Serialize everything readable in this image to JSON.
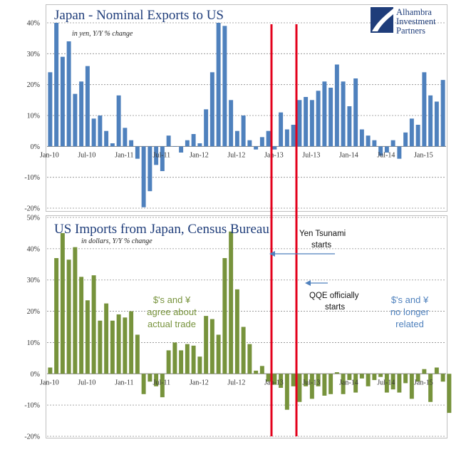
{
  "brand": {
    "lines": [
      "Alhambra",
      "Investment",
      "Partners"
    ],
    "color": "#1f3d7a"
  },
  "colors": {
    "top_bars": "#4f81bd",
    "bottom_bars": "#77933c",
    "markers": "#e3001b",
    "arrows": "#4f81bd"
  },
  "chart_data": [
    {
      "type": "bar",
      "title": "Japan - Nominal Exports to US",
      "subtitle": "in yen, Y/Y % change",
      "ylim": [
        -20,
        40
      ],
      "yticks": [
        "-20%",
        "-10%",
        "0%",
        "10%",
        "20%",
        "30%",
        "40%"
      ],
      "ytick_values": [
        -20,
        -10,
        0,
        10,
        20,
        30,
        40
      ],
      "xtick_labels": [
        "Jan-10",
        "Jul-10",
        "Jan-11",
        "Jul-11",
        "Jan-12",
        "Jul-12",
        "Jan-13",
        "Jul-13",
        "Jan-14",
        "Jul-14",
        "Jan-15"
      ],
      "xtick_index": [
        0,
        6,
        12,
        18,
        24,
        30,
        36,
        42,
        48,
        54,
        60
      ],
      "grid": true,
      "start": "Jan-10",
      "values": [
        24,
        40,
        29,
        34,
        17,
        21,
        26,
        9,
        10,
        5,
        1,
        16.5,
        6,
        2,
        -4,
        -19.7,
        -14.5,
        -6,
        -8,
        3.5,
        0,
        -2,
        2,
        4,
        1,
        12,
        24,
        40,
        39,
        15,
        5,
        10,
        2,
        -1,
        3,
        5,
        -1,
        11,
        5.5,
        7,
        15,
        16,
        15,
        18,
        21,
        19,
        26.5,
        21,
        13,
        22,
        5.5,
        3.5,
        2,
        -3,
        -2,
        2,
        -4,
        4.5,
        9,
        7,
        24,
        16.5,
        14.5,
        21.5
      ]
    },
    {
      "type": "bar",
      "title": "US Imports from Japan, Census Bureau",
      "subtitle": "in dollars, Y/Y % change",
      "ylim": [
        -20,
        50
      ],
      "yticks": [
        "-20%",
        "-10%",
        "0%",
        "10%",
        "20%",
        "30%",
        "40%",
        "50%"
      ],
      "ytick_values": [
        -20,
        -10,
        0,
        10,
        20,
        30,
        40,
        50
      ],
      "xtick_labels": [
        "Jan-10",
        "Jul-10",
        "Jan-11",
        "Jul-11",
        "Jan-12",
        "Jul-12",
        "Jan-13",
        "Jul-13",
        "Jan-14",
        "Jul-14",
        "Jan-15"
      ],
      "xtick_index": [
        0,
        6,
        12,
        18,
        24,
        30,
        36,
        42,
        48,
        54,
        60
      ],
      "grid": true,
      "start": "Jan-10",
      "values": [
        2,
        37,
        45,
        36.5,
        40.5,
        31,
        23.5,
        31.5,
        17,
        22.5,
        17,
        19,
        18,
        20,
        12.5,
        -6.5,
        -2.5,
        -4,
        -7.5,
        7.5,
        10,
        7.5,
        9.5,
        9,
        5.5,
        18.5,
        17.5,
        12.5,
        37,
        45.5,
        27,
        15,
        9.5,
        1,
        2.5,
        -2.5,
        -3.5,
        -4.5,
        -11.5,
        -4,
        -9,
        -4,
        -8,
        -4,
        -7,
        -6.5,
        0.5,
        -6.5,
        -2,
        -6,
        -1.5,
        -4,
        -2,
        -1,
        -6,
        -5,
        -6,
        -3,
        -8,
        -2.5,
        1.5,
        -9,
        2,
        -2.5,
        -12.5
      ],
      "annotations": [
        {
          "lines": [
            "$'s and ¥",
            "agree about",
            "actual trade"
          ],
          "color": "green"
        },
        {
          "lines": [
            "$'s and ¥",
            "no longer",
            "related"
          ],
          "color": "blue"
        }
      ]
    }
  ],
  "markers": [
    {
      "index": 35.5,
      "label_lines": [
        "Yen Tsunami",
        "starts"
      ]
    },
    {
      "index": 39.5,
      "label_lines": [
        "QQE officially",
        "starts"
      ]
    }
  ]
}
